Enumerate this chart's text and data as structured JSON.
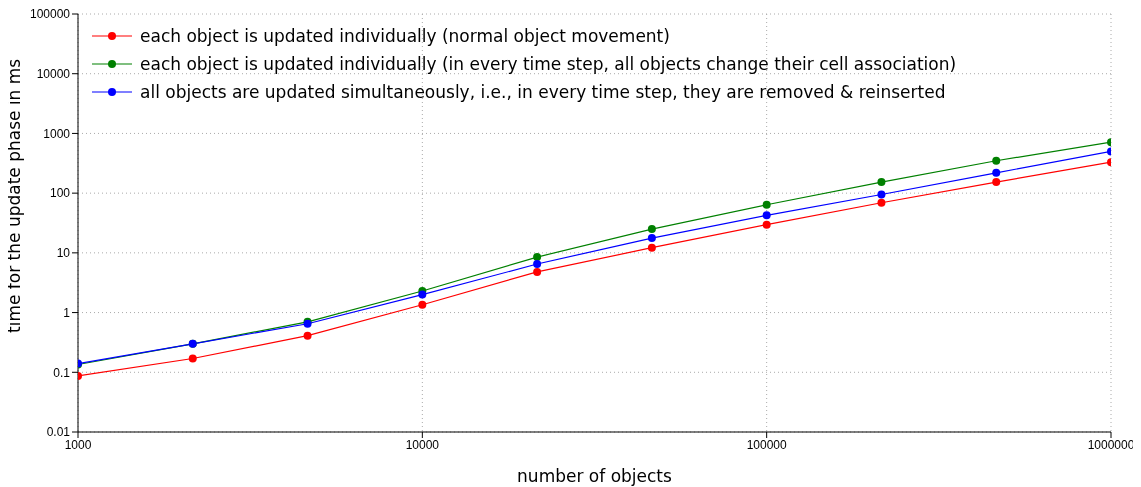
{
  "chart_data": {
    "type": "line",
    "xlabel": "number of objects",
    "ylabel": "time for the update phase in ms",
    "x": [
      1000,
      2154,
      4642,
      10000,
      21544,
      46416,
      100000,
      215443,
      464159,
      1000000
    ],
    "series": [
      {
        "name": "each object is updated individually (normal object movement)",
        "color": "#ff0000",
        "values": [
          0.087,
          0.17,
          0.41,
          1.35,
          4.8,
          12.2,
          29.7,
          69,
          153,
          330
        ]
      },
      {
        "name": "each object is updated individually (in every time step, all objects change their cell association)",
        "color": "#008000",
        "values": [
          0.135,
          0.3,
          0.7,
          2.3,
          8.5,
          25,
          64,
          153,
          349,
          713
        ]
      },
      {
        "name": "all objects are updated simultaneously, i.e., in every time step, they are removed & reinserted",
        "color": "#0000ff",
        "values": [
          0.14,
          0.3,
          0.65,
          2.0,
          6.5,
          17.7,
          42.5,
          95,
          219,
          499
        ]
      }
    ],
    "log": "xy",
    "xlim": [
      1000,
      1000000
    ],
    "xticks": [
      1000,
      10000,
      100000,
      1000000
    ],
    "ylim": [
      0.01,
      100000
    ],
    "yticks": [
      0.01,
      0.1,
      1,
      10,
      100,
      1000,
      10000,
      100000
    ],
    "grid": true,
    "legend": "top left",
    "marker": "circle",
    "line_style": "solid"
  }
}
